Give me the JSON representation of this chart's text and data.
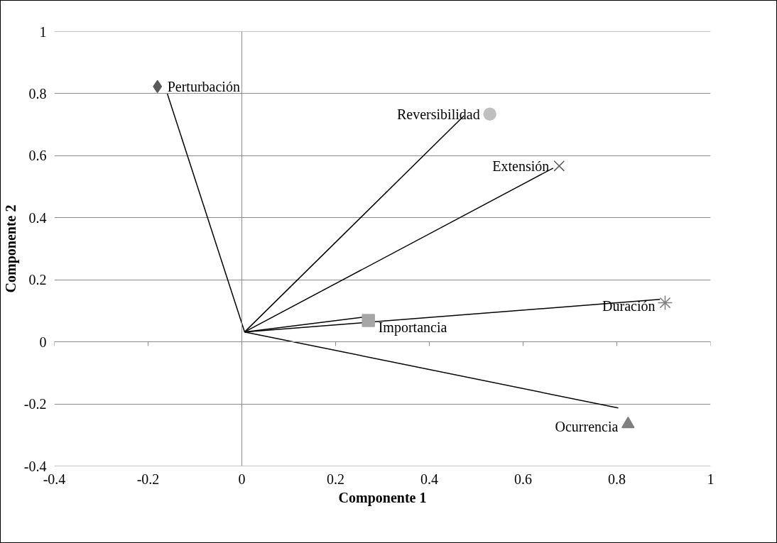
{
  "chart_data": {
    "type": "scatter",
    "xlabel": "Componente 1",
    "ylabel": "Componente 2",
    "xlim": [
      -0.4,
      1
    ],
    "ylim": [
      -0.4,
      1
    ],
    "xticks": [
      -0.4,
      -0.2,
      0,
      0.2,
      0.4,
      0.6,
      0.8,
      1
    ],
    "yticks": [
      -0.4,
      -0.2,
      0,
      0.2,
      0.4,
      0.6,
      0.8,
      1
    ],
    "grid": "y",
    "ref_lines": [
      {
        "axis": "x",
        "value": 0,
        "color": "#8c8c8c"
      }
    ],
    "series": [
      {
        "type": "line",
        "color": "#000000",
        "x": [
          0.006,
          -0.159
        ],
        "values": [
          0.032,
          0.8
        ]
      },
      {
        "type": "line",
        "color": "#000000",
        "x": [
          0.006,
          0.474
        ],
        "values": [
          0.032,
          0.729
        ]
      },
      {
        "type": "line",
        "color": "#000000",
        "x": [
          0.006,
          0.664
        ],
        "values": [
          0.032,
          0.56
        ]
      },
      {
        "type": "line",
        "color": "#000000",
        "x": [
          0.006,
          0.892
        ],
        "values": [
          0.032,
          0.137
        ]
      },
      {
        "type": "line",
        "color": "#000000",
        "x": [
          0.006,
          0.261
        ],
        "values": [
          0.032,
          0.08
        ]
      },
      {
        "type": "line",
        "color": "#000000",
        "x": [
          0.006,
          0.803
        ],
        "values": [
          0.032,
          -0.213
        ]
      },
      {
        "name": "Perturbación",
        "marker": "diamond",
        "color": "#595959",
        "x": [
          -0.18
        ],
        "values": [
          0.823
        ]
      },
      {
        "name": "Reversibilidad",
        "marker": "circle",
        "color": "#bfbfbf",
        "x": [
          0.529
        ],
        "values": [
          0.734
        ]
      },
      {
        "name": "Extensión",
        "marker": "cross",
        "color": "#595959",
        "x": [
          0.677
        ],
        "values": [
          0.567
        ]
      },
      {
        "name": "Duración",
        "color": "#7f7f7f",
        "x": [
          0.903
        ],
        "values": [
          0.126
        ]
      },
      {
        "name": "Importancia",
        "marker": "square",
        "color": "#a6a6a6",
        "x": [
          0.27
        ],
        "values": [
          0.069
        ]
      },
      {
        "name": "Ocurrencia",
        "marker": "triangle",
        "color": "#7f7f7f",
        "x": [
          0.824
        ],
        "values": [
          -0.265
        ]
      }
    ]
  }
}
